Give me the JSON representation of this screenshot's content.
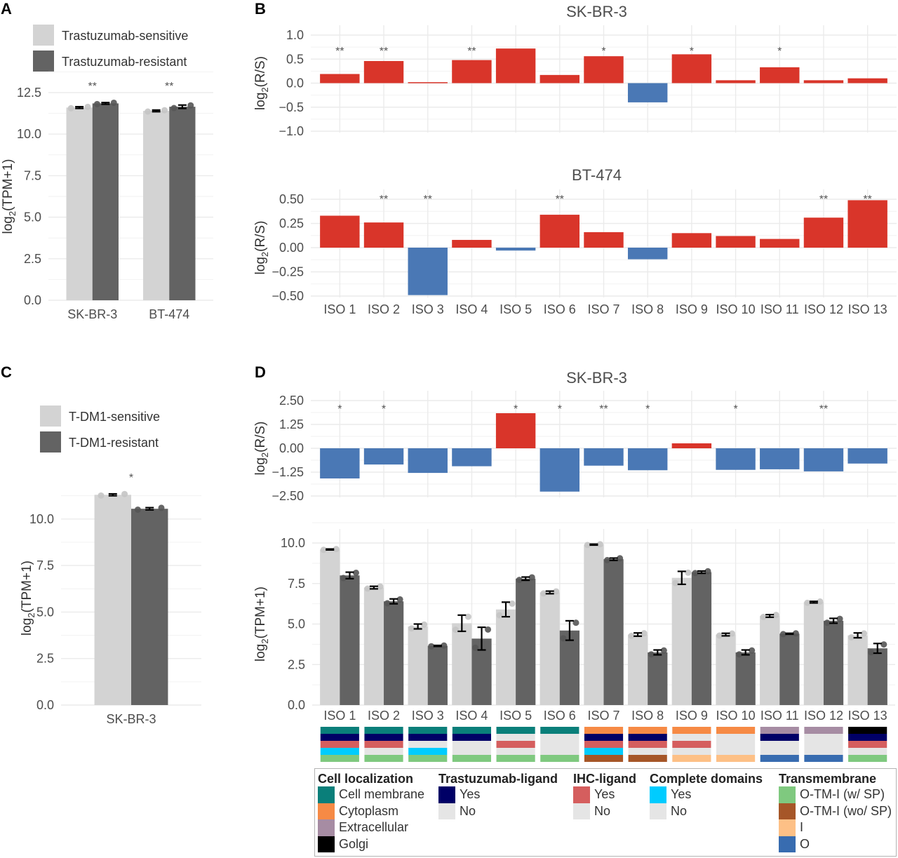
{
  "figure": {
    "panel_letters": [
      "A",
      "B",
      "C",
      "D"
    ]
  },
  "chart_data": [
    {
      "id": "A",
      "type": "bar",
      "title": "",
      "xlabel": "",
      "ylabel": "log2(TPM+1)",
      "ylim": [
        0,
        12.5
      ],
      "yticks": [
        "0.0",
        "2.5",
        "5.0",
        "7.5",
        "10.0",
        "12.5"
      ],
      "categories": [
        "SK-BR-3",
        "BT-474"
      ],
      "legend": {
        "placement": "top-left",
        "entries": [
          "Trastuzumab-sensitive",
          "Trastuzumab-resistant"
        ]
      },
      "series": [
        {
          "name": "Trastuzumab-sensitive",
          "color": "#d3d3d3",
          "values": [
            11.6,
            11.4
          ],
          "err": [
            0.05,
            0.05
          ]
        },
        {
          "name": "Trastuzumab-resistant",
          "color": "#636363",
          "values": [
            11.85,
            11.65
          ],
          "err": [
            0.05,
            0.1
          ]
        }
      ],
      "significance": [
        "**",
        "**"
      ]
    },
    {
      "id": "B-top",
      "type": "bar",
      "title": "SK-BR-3",
      "ylabel": "log2(R/S)",
      "ylim": [
        -1.0,
        1.0
      ],
      "yticks": [
        "-1.0",
        "-0.5",
        "0.0",
        "0.5",
        "1.0"
      ],
      "categories": [
        "ISO 1",
        "ISO 2",
        "ISO 3",
        "ISO 4",
        "ISO 5",
        "ISO 6",
        "ISO 7",
        "ISO 8",
        "ISO 9",
        "ISO 10",
        "ISO 11",
        "ISO 12",
        "ISO 13"
      ],
      "values": [
        0.19,
        0.46,
        0.02,
        0.48,
        0.72,
        0.17,
        0.56,
        -0.4,
        0.6,
        0.06,
        0.33,
        0.06,
        0.1
      ],
      "significance": [
        "**",
        "**",
        "",
        "**",
        "",
        "",
        "*",
        "",
        "*",
        "",
        "*",
        "",
        ""
      ],
      "colors": {
        "positive": "#d9352a",
        "negative": "#4a78b5"
      }
    },
    {
      "id": "B-bottom",
      "type": "bar",
      "title": "BT-474",
      "ylabel": "log2(R/S)",
      "ylim": [
        -0.5,
        0.5
      ],
      "yticks": [
        "-0.50",
        "-0.25",
        "0.00",
        "0.25",
        "0.50"
      ],
      "categories": [
        "ISO 1",
        "ISO 2",
        "ISO 3",
        "ISO 4",
        "ISO 5",
        "ISO 6",
        "ISO 7",
        "ISO 8",
        "ISO 9",
        "ISO 10",
        "ISO 11",
        "ISO 12",
        "ISO 13"
      ],
      "values": [
        0.33,
        0.26,
        -0.49,
        0.08,
        -0.03,
        0.34,
        0.16,
        -0.12,
        0.15,
        0.12,
        0.09,
        0.31,
        0.49
      ],
      "significance": [
        "",
        "**",
        "**",
        "",
        "",
        "**",
        "",
        "",
        "",
        "",
        "",
        "**",
        "**"
      ],
      "colors": {
        "positive": "#d9352a",
        "negative": "#4a78b5"
      }
    },
    {
      "id": "C",
      "type": "bar",
      "title": "",
      "ylabel": "log2(TPM+1)",
      "ylim": [
        0,
        11.5
      ],
      "yticks": [
        "0.0",
        "2.5",
        "5.0",
        "7.5",
        "10.0"
      ],
      "categories": [
        "SK-BR-3"
      ],
      "legend": {
        "placement": "top-left",
        "entries": [
          "T-DM1-sensitive",
          "T-DM1-resistant"
        ]
      },
      "series": [
        {
          "name": "T-DM1-sensitive",
          "color": "#d3d3d3",
          "values": [
            11.3
          ],
          "err": [
            0.05
          ]
        },
        {
          "name": "T-DM1-resistant",
          "color": "#636363",
          "values": [
            10.55
          ],
          "err": [
            0.06
          ]
        }
      ],
      "significance": [
        "*"
      ]
    },
    {
      "id": "D-top",
      "type": "bar",
      "title": "SK-BR-3",
      "ylabel": "log2(R/S)",
      "ylim": [
        -2.5,
        2.5
      ],
      "yticks": [
        "-2.50",
        "-1.25",
        "0.00",
        "1.25",
        "2.50"
      ],
      "categories": [
        "ISO 1",
        "ISO 2",
        "ISO 3",
        "ISO 4",
        "ISO 5",
        "ISO 6",
        "ISO 7",
        "ISO 8",
        "ISO 9",
        "ISO 10",
        "ISO 11",
        "ISO 12",
        "ISO 13"
      ],
      "values": [
        -1.58,
        -0.85,
        -1.29,
        -0.94,
        1.84,
        -2.27,
        -0.91,
        -1.15,
        0.26,
        -1.13,
        -1.1,
        -1.21,
        -0.8
      ],
      "significance": [
        "*",
        "*",
        "",
        "",
        "*",
        "*",
        "**",
        "*",
        "",
        "*",
        "",
        "**",
        ""
      ],
      "colors": {
        "positive": "#d9352a",
        "negative": "#4a78b5"
      }
    },
    {
      "id": "D-bottom",
      "type": "bar",
      "ylabel": "log2(TPM+1)",
      "ylim": [
        0,
        10
      ],
      "yticks": [
        "0.0",
        "2.5",
        "5.0",
        "7.5",
        "10.0"
      ],
      "categories": [
        "ISO 1",
        "ISO 2",
        "ISO 3",
        "ISO 4",
        "ISO 5",
        "ISO 6",
        "ISO 7",
        "ISO 8",
        "ISO 9",
        "ISO 10",
        "ISO 11",
        "ISO 12",
        "ISO 13"
      ],
      "series": [
        {
          "name": "Trastuzumab-sensitive",
          "color": "#d3d3d3",
          "values": [
            9.6,
            7.25,
            4.85,
            5.05,
            5.9,
            6.95,
            9.9,
            4.35,
            7.85,
            4.35,
            5.5,
            6.35,
            4.3
          ],
          "err": [
            0.03,
            0.08,
            0.15,
            0.5,
            0.45,
            0.08,
            0.03,
            0.1,
            0.4,
            0.08,
            0.08,
            0.05,
            0.15
          ]
        },
        {
          "name": "Trastuzumab-resistant",
          "color": "#636363",
          "values": [
            8.0,
            6.4,
            3.65,
            4.1,
            7.8,
            4.6,
            9.0,
            3.25,
            8.2,
            3.25,
            4.4,
            5.2,
            3.5
          ],
          "err": [
            0.2,
            0.15,
            0.03,
            0.7,
            0.1,
            0.6,
            0.07,
            0.15,
            0.07,
            0.15,
            0.03,
            0.15,
            0.3
          ]
        }
      ]
    }
  ],
  "annotation_tracks": {
    "rows": [
      "Cell localization",
      "Trastuzumab-ligand",
      "IHC-ligand",
      "Complete domains",
      "Transmembrane"
    ],
    "values": [
      [
        "Cell membrane",
        "Yes",
        "Yes",
        "Yes",
        "O-TM-I (w/ SP)"
      ],
      [
        "Cell membrane",
        "Yes",
        "Yes",
        "No",
        "O-TM-I (w/ SP)"
      ],
      [
        "Cell membrane",
        "Yes",
        "No",
        "Yes",
        "O-TM-I (w/ SP)"
      ],
      [
        "Cell membrane",
        "Yes",
        "No",
        "No",
        "O-TM-I (w/ SP)"
      ],
      [
        "Cell membrane",
        "No",
        "Yes",
        "No",
        "O-TM-I (w/ SP)"
      ],
      [
        "Cell membrane",
        "No",
        "No",
        "No",
        "O-TM-I (w/ SP)"
      ],
      [
        "Cytoplasm",
        "Yes",
        "Yes",
        "Yes",
        "O-TM-I (wo/ SP)"
      ],
      [
        "Cytoplasm",
        "Yes",
        "Yes",
        "No",
        "O-TM-I (wo/ SP)"
      ],
      [
        "Cytoplasm",
        "No",
        "Yes",
        "No",
        "I"
      ],
      [
        "Cytoplasm",
        "No",
        "No",
        "No",
        "I"
      ],
      [
        "Extracellular",
        "Yes",
        "No",
        "No",
        "O"
      ],
      [
        "Extracellular",
        "No",
        "No",
        "No",
        "O"
      ],
      [
        "Golgi",
        "Yes",
        "Yes",
        "No",
        "O-TM-I (w/ SP)"
      ]
    ]
  },
  "legend": {
    "groups": [
      {
        "title": "Cell localization",
        "items": [
          {
            "label": "Cell membrane",
            "color": "#0a7f7a"
          },
          {
            "label": "Cytoplasm",
            "color": "#f68a45"
          },
          {
            "label": "Extracellular",
            "color": "#a68ca3"
          },
          {
            "label": "Golgi",
            "color": "#000000"
          }
        ]
      },
      {
        "title": "Trastuzumab-ligand",
        "items": [
          {
            "label": "Yes",
            "color": "#000066"
          },
          {
            "label": "No",
            "color": "#e5e5e5"
          }
        ]
      },
      {
        "title": "IHC-ligand",
        "items": [
          {
            "label": "Yes",
            "color": "#d55e5e"
          },
          {
            "label": "No",
            "color": "#e5e5e5"
          }
        ]
      },
      {
        "title": "Complete domains",
        "items": [
          {
            "label": "Yes",
            "color": "#00ccff"
          },
          {
            "label": "No",
            "color": "#e5e5e5"
          }
        ]
      },
      {
        "title": "Transmembrane",
        "items": [
          {
            "label": "O-TM-I (w/ SP)",
            "color": "#7fc97f"
          },
          {
            "label": "O-TM-I (wo/ SP)",
            "color": "#a65628"
          },
          {
            "label": "I",
            "color": "#fdc086"
          },
          {
            "label": "O",
            "color": "#386cb0"
          }
        ]
      }
    ]
  }
}
